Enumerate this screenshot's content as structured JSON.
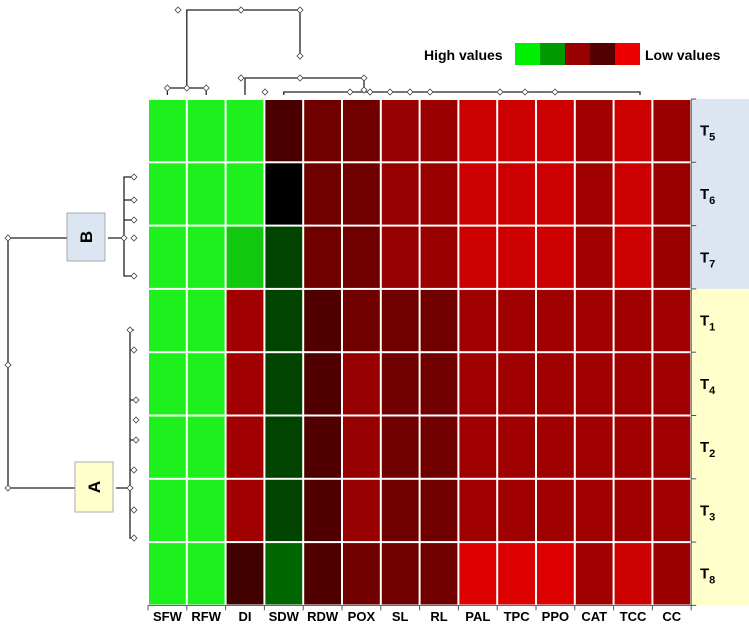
{
  "chart_data": {
    "type": "heatmap",
    "legend": {
      "high_label": "High values",
      "low_label": "Low values",
      "colors": [
        "#00ee00",
        "#009900",
        "#990000",
        "#550000",
        "#ee0000"
      ]
    },
    "columns": [
      "SFW",
      "RFW",
      "DI",
      "SDW",
      "RDW",
      "POX",
      "SL",
      "RL",
      "PAL",
      "TPC",
      "PPO",
      "CAT",
      "TCC",
      "CC"
    ],
    "rows": [
      {
        "label": "T",
        "sub": "5",
        "group": "B"
      },
      {
        "label": "T",
        "sub": "6",
        "group": "B"
      },
      {
        "label": "T",
        "sub": "7",
        "group": "B"
      },
      {
        "label": "T",
        "sub": "1",
        "group": "A"
      },
      {
        "label": "T",
        "sub": "4",
        "group": "A"
      },
      {
        "label": "T",
        "sub": "2",
        "group": "A"
      },
      {
        "label": "T",
        "sub": "3",
        "group": "A"
      },
      {
        "label": "T",
        "sub": "8",
        "group": "A"
      }
    ],
    "cell_colors": [
      [
        "#1ef01e",
        "#1ef01e",
        "#1ef01e",
        "#4a0000",
        "#700000",
        "#700000",
        "#960000",
        "#9a0000",
        "#cc0000",
        "#cc0000",
        "#cc0000",
        "#a00000",
        "#cc0000",
        "#9a0000"
      ],
      [
        "#1ef01e",
        "#1ef01e",
        "#1ef01e",
        "#000000",
        "#700000",
        "#700000",
        "#960000",
        "#9a0000",
        "#cc0000",
        "#cc0000",
        "#cc0000",
        "#a00000",
        "#cc0000",
        "#9a0000"
      ],
      [
        "#1ef01e",
        "#1ef01e",
        "#10c810",
        "#004400",
        "#700000",
        "#700000",
        "#960000",
        "#9a0000",
        "#cc0000",
        "#cc0000",
        "#cc0000",
        "#a00000",
        "#cc0000",
        "#9a0000"
      ],
      [
        "#1ef01e",
        "#1ef01e",
        "#a00000",
        "#004400",
        "#500000",
        "#700000",
        "#700000",
        "#700000",
        "#a00000",
        "#a00000",
        "#a00000",
        "#a00000",
        "#a00000",
        "#a00000"
      ],
      [
        "#1ef01e",
        "#1ef01e",
        "#a00000",
        "#004400",
        "#500000",
        "#960000",
        "#700000",
        "#700000",
        "#a00000",
        "#a00000",
        "#a00000",
        "#a00000",
        "#a00000",
        "#a00000"
      ],
      [
        "#1ef01e",
        "#1ef01e",
        "#a00000",
        "#004400",
        "#500000",
        "#960000",
        "#700000",
        "#700000",
        "#a00000",
        "#a00000",
        "#a00000",
        "#a00000",
        "#a00000",
        "#a00000"
      ],
      [
        "#1ef01e",
        "#1ef01e",
        "#a00000",
        "#004400",
        "#500000",
        "#960000",
        "#700000",
        "#700000",
        "#a00000",
        "#a00000",
        "#a00000",
        "#a00000",
        "#a00000",
        "#a00000"
      ],
      [
        "#1ef01e",
        "#1ef01e",
        "#400000",
        "#006600",
        "#500000",
        "#700000",
        "#700000",
        "#700000",
        "#dd0000",
        "#dd0000",
        "#dd0000",
        "#a00000",
        "#cc0000",
        "#9a0000"
      ]
    ],
    "row_groups": [
      {
        "label": "B",
        "color": "#dce6f2"
      },
      {
        "label": "A",
        "color": "#ffffcc"
      }
    ]
  }
}
